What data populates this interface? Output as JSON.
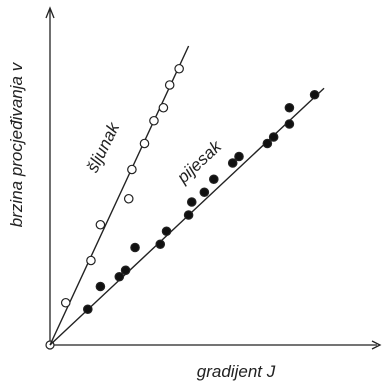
{
  "chart_data": {
    "type": "scatter",
    "xlabel": "gradijent J",
    "ylabel": "brzina procjeđivanja v",
    "xlim": [
      0,
      10
    ],
    "ylim": [
      0,
      10
    ],
    "grid": false,
    "legend": "none",
    "colors": {
      "axis": "#222222",
      "line": "#222222",
      "open_marker_fill": "#ffffff",
      "filled_marker_fill": "#111111"
    },
    "series": [
      {
        "name": "šljunak",
        "marker": "open-circle",
        "x": [
          0.5,
          1.3,
          1.6,
          2.5,
          2.6,
          3.0,
          3.3,
          3.6,
          3.8,
          4.1
        ],
        "y": [
          1.3,
          2.6,
          3.7,
          4.5,
          5.4,
          6.2,
          6.9,
          7.3,
          8.0,
          8.5
        ],
        "fit": {
          "x": [
            0,
            4.4
          ],
          "y": [
            0,
            9.2
          ]
        }
      },
      {
        "name": "pijesak",
        "marker": "filled-circle",
        "x": [
          1.2,
          1.6,
          2.2,
          2.4,
          2.7,
          3.5,
          3.7,
          4.4,
          4.5,
          4.9,
          5.2,
          5.8,
          6.0,
          6.9,
          7.1,
          7.6,
          7.6,
          8.4
        ],
        "y": [
          1.1,
          1.8,
          2.1,
          2.3,
          3.0,
          3.1,
          3.5,
          4.0,
          4.4,
          4.7,
          5.1,
          5.6,
          5.8,
          6.2,
          6.4,
          6.8,
          7.3,
          7.7
        ],
        "fit": {
          "x": [
            0,
            8.7
          ],
          "y": [
            0,
            7.9
          ]
        }
      }
    ]
  }
}
